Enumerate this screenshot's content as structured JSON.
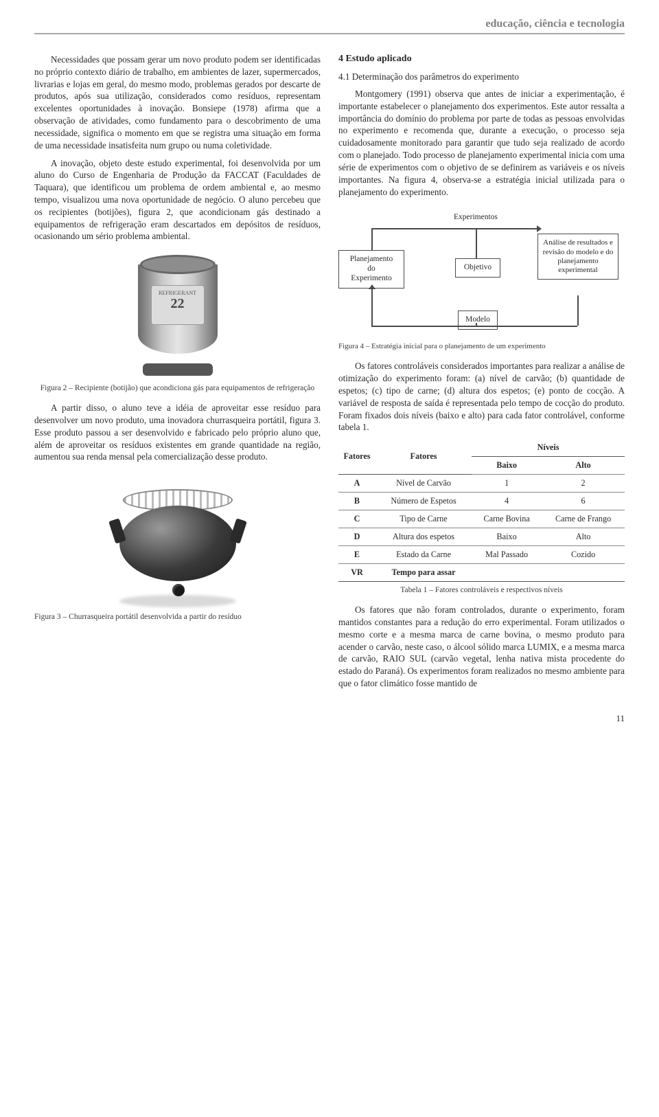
{
  "header": {
    "title": "educação, ciência e tecnologia"
  },
  "page_number": "11",
  "colors": {
    "text": "#2a2a2a",
    "header_gray": "#808080",
    "rule": "#a8a8a8",
    "box_border": "#4a4a4a"
  },
  "left": {
    "p1": "Necessidades que possam gerar um novo produto podem ser identificadas no próprio contexto diário de trabalho, em ambientes de lazer, supermercados, livrarias e lojas em geral, do mesmo modo, problemas gerados por descarte de produtos, após sua utilização, considerados como resíduos, representam excelentes oportunidades à inovação. Bonsiepe (1978) afirma que a observação de atividades, como fundamento para o descobrimento de uma necessidade, significa o momento em que se registra uma situação em forma de uma necessidade insatisfeita num grupo ou numa coletividade.",
    "p2": "A inovação, objeto deste estudo experimental, foi desenvolvida por um aluno do Curso de Engenharia de Produção da FACCAT (Faculdades de Taquara), que identificou um problema de ordem ambiental e, ao mesmo tempo, visualizou uma nova oportunidade de negócio. O aluno percebeu que os recipientes (botijões), figura 2, que acondicionam gás destinado a equipamentos de refrigeração eram descartados em depósitos de resíduos, ocasionando um sério problema ambiental.",
    "fig2_label_small": "REFRIGERANT",
    "fig2_label_big": "22",
    "fig2_caption": "Figura 2 – Recipiente (botijão) que acondiciona gás para equipamentos de refrigeração",
    "p3": "A partir disso, o aluno teve a idéia de aproveitar esse resíduo para desenvolver um novo produto, uma inovadora churrasqueira portátil, figura 3. Esse produto passou a ser desenvolvido e fabricado pelo próprio aluno que, além de aproveitar os resíduos existentes em grande quantidade na região, aumentou sua renda mensal pela comercialização desse produto.",
    "fig3_caption": "Figura 3 – Churrasqueira portátil desenvolvida a partir do resíduo"
  },
  "right": {
    "h4": "4 Estudo aplicado",
    "sub41": "4.1 Determinação dos parâmetros do experimento",
    "p1": "Montgomery (1991) observa que antes de iniciar a experimentação, é importante estabelecer o planejamento dos experimentos. Este autor ressalta a importância do domínio do problema por parte de todas as pessoas envolvidas no experimento e recomenda que, durante a execução, o processo seja cuidadosamente monitorado para garantir que tudo seja realizado de acordo com o planejado. Todo processo de planejamento experimental inicia com uma série de experimentos com o objetivo de se definirem as variáveis e os níveis importantes. Na figura 4, observa-se a estratégia inicial utilizada para o planejamento do experimento.",
    "fig4": {
      "node_plan": "Planejamento\ndo\nExperimento",
      "label_exp_top": "Experimentos",
      "node_obj": "Objetivo",
      "node_analysis": "Análise de resultados e revisão do modelo e do planejamento experimental",
      "label_model": "Modelo",
      "caption": "Figura 4 – Estratégia inicial para o planejamento de um experimento"
    },
    "p2": "Os fatores controláveis considerados importantes para realizar a análise de otimização do experimento foram: (a) nível de carvão; (b) quantidade de espetos; (c) tipo de carne; (d) altura dos espetos; (e) ponto de cocção. A variável de resposta de saída é representada pelo tempo de cocção do produto. Foram fixados dois níveis (baixo e alto) para cada fator controlável, conforme tabela 1.",
    "table": {
      "head_fatores": "Fatores",
      "head_fatores2": "Fatores",
      "head_niveis": "Níveis",
      "head_baixo": "Baixo",
      "head_alto": "Alto",
      "rows": [
        {
          "code": "A",
          "name": "Nível de Carvão",
          "low": "1",
          "high": "2"
        },
        {
          "code": "B",
          "name": "Número de Espetos",
          "low": "4",
          "high": "6"
        },
        {
          "code": "C",
          "name": "Tipo de Carne",
          "low": "Carne Bovina",
          "high": "Carne de Frango"
        },
        {
          "code": "D",
          "name": "Altura dos espetos",
          "low": "Baixo",
          "high": "Alto"
        },
        {
          "code": "E",
          "name": "Estado da Carne",
          "low": "Mal Passado",
          "high": "Cozido"
        }
      ],
      "vr_code": "VR",
      "vr_name": "Tempo para assar",
      "caption": "Tabela 1 – Fatores controláveis e respectivos níveis"
    },
    "p3": "Os fatores que não foram controlados, durante o experimento, foram mantidos constantes para a redução do erro experimental. Foram utilizados o mesmo corte e a mesma marca de carne bovina, o mesmo produto para acender o carvão, neste caso, o álcool sólido marca LUMIX, e a mesma marca de carvão, RAIO SUL (carvão vegetal, lenha nativa mista procedente do estado do Paraná). Os experimentos foram realizados no mesmo ambiente para que o fator climático fosse mantido de"
  }
}
